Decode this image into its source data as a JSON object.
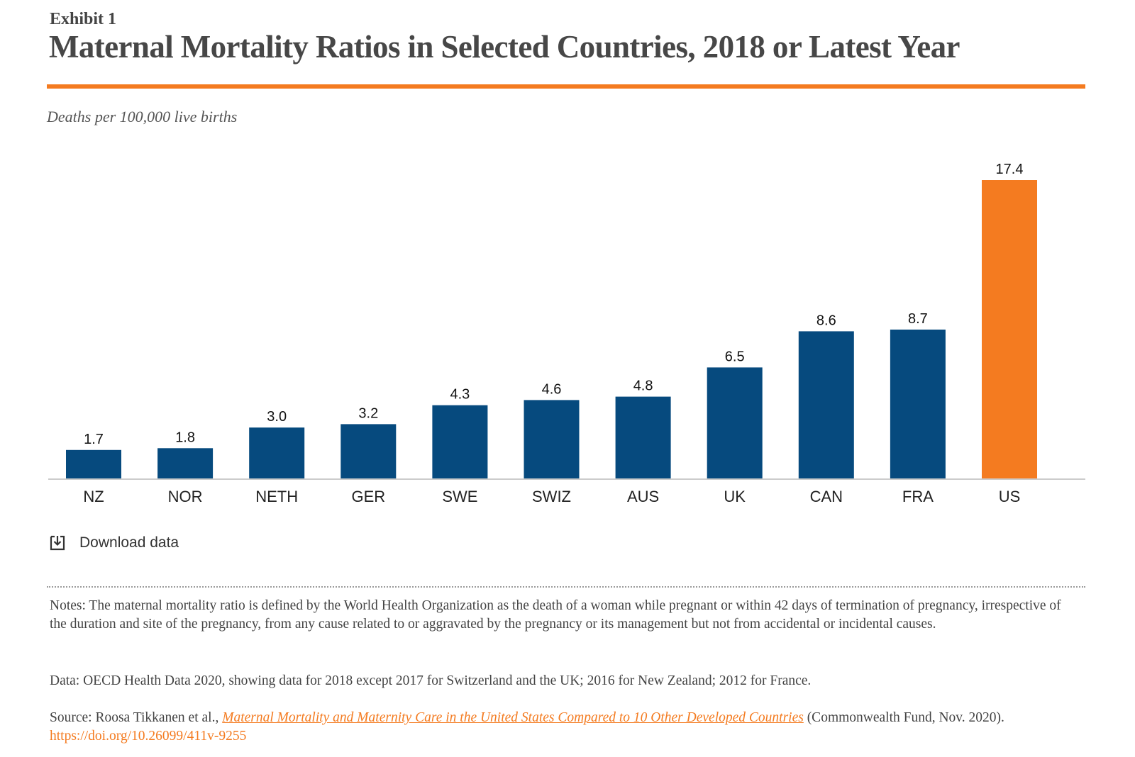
{
  "header": {
    "exhibit": "Exhibit 1",
    "title": "Maternal Mortality Ratios in Selected Countries, 2018 or Latest Year",
    "unit": "Deaths per 100,000 live births"
  },
  "colors": {
    "accent": "#f47b20",
    "bar": "#064a7e",
    "highlight_bar": "#f47b20",
    "axis": "#cccccc"
  },
  "chart_data": {
    "type": "bar",
    "title": "Maternal Mortality Ratios in Selected Countries, 2018 or Latest Year",
    "ylabel": "Deaths per 100,000 live births",
    "xlabel": "",
    "categories": [
      "NZ",
      "NOR",
      "NETH",
      "GER",
      "SWE",
      "SWIZ",
      "AUS",
      "UK",
      "CAN",
      "FRA",
      "US"
    ],
    "values": [
      1.7,
      1.8,
      3.0,
      3.2,
      4.3,
      4.6,
      4.8,
      6.5,
      8.6,
      8.7,
      17.4
    ],
    "data_labels": [
      "1.7",
      "1.8",
      "3.0",
      "3.2",
      "4.3",
      "4.6",
      "4.8",
      "6.5",
      "8.6",
      "8.7",
      "17.4"
    ],
    "highlight_category": "US",
    "ylim": [
      0,
      17.4
    ],
    "grid": false,
    "legend": "none"
  },
  "download": {
    "label": "Download data",
    "icon": "download-icon"
  },
  "notes": {
    "notes_text": "Notes: The maternal mortality ratio is defined by the World Health Organization as the death of a woman while pregnant or within 42 days of termination of pregnancy, irrespective of the duration and site of the pregnancy, from any cause related to or aggravated by the pregnancy or its management but not from accidental or incidental causes.",
    "data_text": "Data: OECD Health Data 2020, showing data for 2018 except 2017 for Switzerland and the UK; 2016 for New Zealand; 2012 for France.",
    "source_prefix": "Source: Roosa Tikkanen et al., ",
    "source_title": "Maternal Mortality and Maternity Care in the United States Compared to 10 Other Developed Countries",
    "source_suffix": " (Commonwealth Fund, Nov. 2020). ",
    "source_link": "https://doi.org/10.26099/411v-9255"
  }
}
